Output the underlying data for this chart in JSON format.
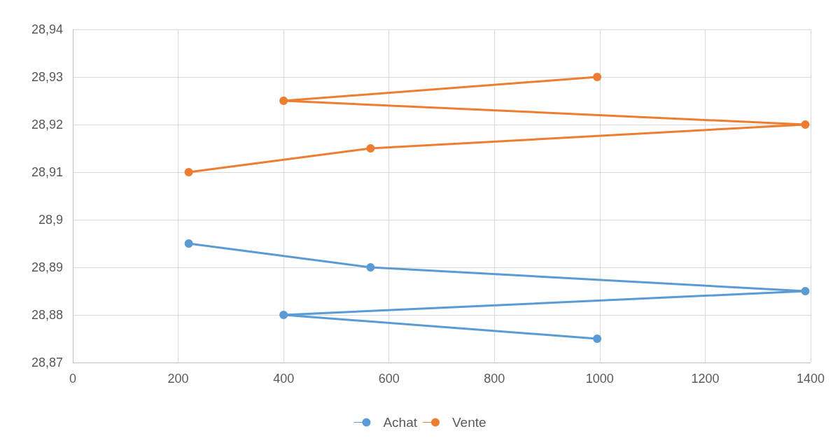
{
  "chart_data": {
    "type": "line",
    "marker": "circle",
    "line_style": "solid",
    "grid": true,
    "legend": "bottom",
    "xlim": [
      0,
      1400
    ],
    "xticks": [
      0,
      200,
      400,
      600,
      800,
      1000,
      1200,
      1400
    ],
    "ylim": [
      28.87,
      28.94
    ],
    "yticks": [
      {
        "value": 28.87,
        "label": "28,87"
      },
      {
        "value": 28.88,
        "label": "28,88"
      },
      {
        "value": 28.89,
        "label": "28,89"
      },
      {
        "value": 28.9,
        "label": "28,9"
      },
      {
        "value": 28.91,
        "label": "28,91"
      },
      {
        "value": 28.92,
        "label": "28,92"
      },
      {
        "value": 28.93,
        "label": "28,93"
      },
      {
        "value": 28.94,
        "label": "28,94"
      }
    ],
    "series": [
      {
        "name": "Achat",
        "color": "#5b9bd5",
        "x": [
          220,
          565,
          1390,
          400,
          995
        ],
        "values": [
          28.895,
          28.89,
          28.885,
          28.88,
          28.875
        ]
      },
      {
        "name": "Vente",
        "color": "#ed7d31",
        "x": [
          220,
          565,
          1390,
          400,
          995
        ],
        "values": [
          28.91,
          28.915,
          28.92,
          28.925,
          28.93
        ]
      }
    ]
  }
}
